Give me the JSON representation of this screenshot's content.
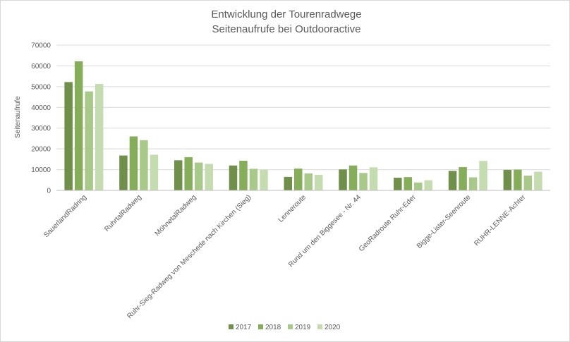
{
  "chart_data": {
    "type": "bar",
    "title": "Entwicklung der Tourenradwege",
    "subtitle": "Seitenaufrufe bei Outdooractive",
    "xlabel": "",
    "ylabel": "Seitenaufrufe",
    "ylim": [
      0,
      70000
    ],
    "yticks": [
      "0",
      "10000",
      "20000",
      "30000",
      "40000",
      "50000",
      "60000",
      "70000"
    ],
    "grid": true,
    "legend_position": "bottom",
    "categories": [
      "SauerlandRadring",
      "RuhrtalRadweg",
      "MöhnetalRadweg",
      "Ruhr-Sieg-Radweg von Meschede nach Kirchen (Sieg)",
      "Lenneroute",
      "Rund um den Biggesee - Nr. 44",
      "GeoRadroute Ruhr-Eder",
      "Bigge-Lister-Seenroute",
      "RUHR-LENNE-Achter"
    ],
    "series": [
      {
        "name": "2017",
        "color": "#6f8f4a",
        "values": [
          52200,
          16800,
          14500,
          12000,
          6500,
          10100,
          6100,
          9400,
          9900
        ]
      },
      {
        "name": "2018",
        "color": "#86ad5a",
        "values": [
          62200,
          26000,
          16000,
          14300,
          10500,
          12000,
          6400,
          11200,
          10000
        ]
      },
      {
        "name": "2019",
        "color": "#a8c98a",
        "values": [
          47700,
          24200,
          13400,
          10400,
          8200,
          8400,
          3800,
          6300,
          7100
        ]
      },
      {
        "name": "2020",
        "color": "#c5dcb0",
        "values": [
          51300,
          17200,
          12800,
          10000,
          7500,
          11100,
          4900,
          14200,
          9000
        ]
      }
    ]
  }
}
